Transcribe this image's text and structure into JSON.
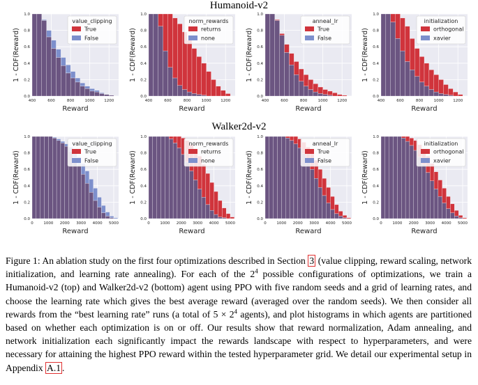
{
  "figure": {
    "row_titles": [
      "Humanoid-v2",
      "Walker2d-v2"
    ],
    "colors": {
      "on": "#d0343c",
      "off": "#7d8fcc",
      "overlap": "#6b5581",
      "grid": "#ffffff",
      "legend_bg": "#ffffff"
    }
  },
  "caption": {
    "label": "Figure 1:",
    "text_1": "An ablation study on the first four optimizations described in Section",
    "ref_section": "3",
    "text_2": "(value clipping, reward scaling, network initialization, and learning rate annealing). For each of the",
    "exp_base": "2",
    "exp_power": "4",
    "text_3": "possible configurations of optimizations, we train a Humanoid-v2 (top) and Walker2d-v2 (bottom) agent using PPO with five random seeds and a grid of learning rates, and choose the learning rate which gives the best average reward (averaged over the random seeds). We then consider all rewards from the “best learning rate” runs (a total of",
    "count_expr": "5 × 2",
    "count_power": "4",
    "text_4": "agents), and plot histograms in which agents are partitioned based on whether each optimization is on or off. Our results show that reward normalization, Adam annealing, and network initialization each significantly impact the rewards landscape with respect to hyperparameters, and were necessary for attaining the highest PPO reward within the tested hyperparameter grid. We detail our experimental setup in Appendix",
    "ref_appendix": "A.1",
    "text_end": "."
  },
  "chart_data": [
    {
      "type": "bar",
      "env": "Humanoid-v2",
      "title": "",
      "xlabel": "Reward",
      "ylabel": "1 - CDF(Reward)",
      "xlim": [
        400,
        1300
      ],
      "ylim": [
        0,
        1.0
      ],
      "xticks": [
        "400",
        "600",
        "800",
        "1000",
        "1200"
      ],
      "yticks": [
        "0.0",
        "0.2",
        "0.4",
        "0.6",
        "0.8",
        "1.0"
      ],
      "legend_title": "value_clipping",
      "legend_position": "top-right",
      "x": [
        400,
        450,
        500,
        550,
        600,
        650,
        700,
        750,
        800,
        850,
        900,
        950,
        1000,
        1050,
        1100,
        1150,
        1200
      ],
      "series": [
        {
          "name": "True",
          "values": [
            1.0,
            1.0,
            0.92,
            0.72,
            0.58,
            0.47,
            0.37,
            0.28,
            0.22,
            0.17,
            0.12,
            0.09,
            0.06,
            0.05,
            0.03,
            0.02,
            0.01
          ]
        },
        {
          "name": "False",
          "values": [
            1.0,
            1.0,
            0.93,
            0.8,
            0.68,
            0.57,
            0.47,
            0.38,
            0.3,
            0.22,
            0.16,
            0.12,
            0.09,
            0.07,
            0.04,
            0.02,
            0.01
          ]
        }
      ]
    },
    {
      "type": "bar",
      "env": "Humanoid-v2",
      "title": "",
      "xlabel": "Reward",
      "ylabel": "1 - CDF(Reward)",
      "xlim": [
        400,
        1300
      ],
      "ylim": [
        0,
        1.0
      ],
      "xticks": [
        "400",
        "600",
        "800",
        "1000",
        "1200"
      ],
      "yticks": [
        "0.0",
        "0.2",
        "0.4",
        "0.6",
        "0.8",
        "1.0"
      ],
      "legend_title": "norm_rewards",
      "legend_position": "top-right",
      "x": [
        400,
        450,
        500,
        550,
        600,
        650,
        700,
        750,
        800,
        850,
        900,
        950,
        1000,
        1050,
        1100,
        1150,
        1200
      ],
      "series": [
        {
          "name": "returns",
          "values": [
            1.0,
            1.0,
            1.0,
            1.0,
            1.0,
            0.95,
            0.88,
            0.78,
            0.68,
            0.58,
            0.48,
            0.4,
            0.3,
            0.2,
            0.12,
            0.07,
            0.03
          ]
        },
        {
          "name": "none",
          "values": [
            1.0,
            1.0,
            0.85,
            0.55,
            0.35,
            0.22,
            0.13,
            0.08,
            0.05,
            0.03,
            0.02,
            0.01,
            0.0,
            0.0,
            0.0,
            0.0,
            0.0
          ]
        }
      ]
    },
    {
      "type": "bar",
      "env": "Humanoid-v2",
      "title": "",
      "xlabel": "Reward",
      "ylabel": "1 - CDF(Reward)",
      "xlim": [
        400,
        1300
      ],
      "ylim": [
        0,
        1.0
      ],
      "xticks": [
        "400",
        "600",
        "800",
        "1000",
        "1200"
      ],
      "yticks": [
        "0.0",
        "0.2",
        "0.4",
        "0.6",
        "0.8",
        "1.0"
      ],
      "legend_title": "anneal_lr",
      "legend_position": "top-right",
      "x": [
        400,
        450,
        500,
        550,
        600,
        650,
        700,
        750,
        800,
        850,
        900,
        950,
        1000,
        1050,
        1100,
        1150,
        1200
      ],
      "series": [
        {
          "name": "True",
          "values": [
            1.0,
            1.0,
            0.93,
            0.76,
            0.63,
            0.52,
            0.42,
            0.33,
            0.26,
            0.2,
            0.15,
            0.11,
            0.08,
            0.06,
            0.04,
            0.02,
            0.01
          ]
        },
        {
          "name": "False",
          "values": [
            1.0,
            1.0,
            0.92,
            0.74,
            0.53,
            0.38,
            0.26,
            0.18,
            0.12,
            0.08,
            0.05,
            0.03,
            0.02,
            0.01,
            0.0,
            0.0,
            0.0
          ]
        }
      ]
    },
    {
      "type": "bar",
      "env": "Humanoid-v2",
      "title": "",
      "xlabel": "Reward",
      "ylabel": "1 - CDF(Reward)",
      "xlim": [
        400,
        1300
      ],
      "ylim": [
        0,
        1.0
      ],
      "xticks": [
        "400",
        "600",
        "800",
        "1000",
        "1200"
      ],
      "yticks": [
        "0.0",
        "0.2",
        "0.4",
        "0.6",
        "0.8",
        "1.0"
      ],
      "legend_title": "initialization",
      "legend_position": "top-right",
      "x": [
        400,
        450,
        500,
        550,
        600,
        650,
        700,
        750,
        800,
        850,
        900,
        950,
        1000,
        1050,
        1100,
        1150,
        1200
      ],
      "series": [
        {
          "name": "orthogonal",
          "values": [
            1.0,
            1.0,
            1.0,
            1.0,
            0.95,
            0.85,
            0.7,
            0.58,
            0.48,
            0.4,
            0.32,
            0.26,
            0.2,
            0.14,
            0.09,
            0.05,
            0.02
          ]
        },
        {
          "name": "xavier",
          "values": [
            1.0,
            1.0,
            0.9,
            0.7,
            0.55,
            0.42,
            0.32,
            0.24,
            0.17,
            0.12,
            0.08,
            0.05,
            0.03,
            0.02,
            0.01,
            0.0,
            0.0
          ]
        }
      ]
    },
    {
      "type": "bar",
      "env": "Walker2d-v2",
      "title": "",
      "xlabel": "Reward",
      "ylabel": "1 - CDF(Reward)",
      "xlim": [
        0,
        5300
      ],
      "ylim": [
        0,
        1.0
      ],
      "xticks": [
        "0",
        "1000",
        "2000",
        "3000",
        "4000",
        "5000"
      ],
      "yticks": [
        "0.0",
        "0.2",
        "0.4",
        "0.6",
        "0.8",
        "1.0"
      ],
      "legend_title": "value_clipping",
      "legend_position": "top-right",
      "x": [
        0,
        250,
        500,
        750,
        1000,
        1250,
        1500,
        1750,
        2000,
        2250,
        2500,
        2750,
        3000,
        3250,
        3500,
        3750,
        4000,
        4250,
        4500,
        4750,
        5000
      ],
      "series": [
        {
          "name": "True",
          "values": [
            1.0,
            1.0,
            1.0,
            1.0,
            1.0,
            0.98,
            0.95,
            0.92,
            0.88,
            0.82,
            0.74,
            0.65,
            0.54,
            0.43,
            0.32,
            0.22,
            0.14,
            0.07,
            0.03,
            0.01,
            0.0
          ]
        },
        {
          "name": "False",
          "values": [
            1.0,
            1.0,
            1.0,
            1.0,
            1.0,
            0.99,
            0.97,
            0.94,
            0.91,
            0.87,
            0.82,
            0.75,
            0.67,
            0.58,
            0.48,
            0.37,
            0.26,
            0.16,
            0.08,
            0.03,
            0.01
          ]
        }
      ]
    },
    {
      "type": "bar",
      "env": "Walker2d-v2",
      "title": "",
      "xlabel": "Reward",
      "ylabel": "1 - CDF(Reward)",
      "xlim": [
        0,
        5300
      ],
      "ylim": [
        0,
        1.0
      ],
      "xticks": [
        "0",
        "1000",
        "2000",
        "3000",
        "4000",
        "5000"
      ],
      "yticks": [
        "0.0",
        "0.2",
        "0.4",
        "0.6",
        "0.8",
        "1.0"
      ],
      "legend_title": "norm_rewards",
      "legend_position": "top-right",
      "x": [
        0,
        250,
        500,
        750,
        1000,
        1250,
        1500,
        1750,
        2000,
        2250,
        2500,
        2750,
        3000,
        3250,
        3500,
        3750,
        4000,
        4250,
        4500,
        4750,
        5000
      ],
      "series": [
        {
          "name": "returns",
          "values": [
            1.0,
            1.0,
            1.0,
            1.0,
            1.0,
            1.0,
            1.0,
            1.0,
            0.98,
            0.95,
            0.9,
            0.84,
            0.76,
            0.66,
            0.55,
            0.44,
            0.33,
            0.22,
            0.13,
            0.06,
            0.02
          ]
        },
        {
          "name": "none",
          "values": [
            1.0,
            1.0,
            1.0,
            1.0,
            1.0,
            0.97,
            0.92,
            0.86,
            0.78,
            0.69,
            0.58,
            0.47,
            0.36,
            0.26,
            0.17,
            0.1,
            0.05,
            0.02,
            0.01,
            0.0,
            0.0
          ]
        }
      ]
    },
    {
      "type": "bar",
      "env": "Walker2d-v2",
      "title": "",
      "xlabel": "Reward",
      "ylabel": "1 - CDF(Reward)",
      "xlim": [
        0,
        5300
      ],
      "ylim": [
        0,
        1.0
      ],
      "xticks": [
        "0",
        "1000",
        "2000",
        "3000",
        "4000",
        "5000"
      ],
      "yticks": [
        "0.0",
        "0.2",
        "0.4",
        "0.6",
        "0.8",
        "1.0"
      ],
      "legend_title": "anneal_lr",
      "legend_position": "top-right",
      "x": [
        0,
        250,
        500,
        750,
        1000,
        1250,
        1500,
        1750,
        2000,
        2250,
        2500,
        2750,
        3000,
        3250,
        3500,
        3750,
        4000,
        4250,
        4500,
        4750,
        5000
      ],
      "series": [
        {
          "name": "True",
          "values": [
            1.0,
            1.0,
            1.0,
            1.0,
            1.0,
            1.0,
            1.0,
            1.0,
            0.97,
            0.93,
            0.87,
            0.8,
            0.71,
            0.6,
            0.49,
            0.38,
            0.27,
            0.17,
            0.09,
            0.04,
            0.01
          ]
        },
        {
          "name": "False",
          "values": [
            1.0,
            1.0,
            1.0,
            1.0,
            1.0,
            0.98,
            0.95,
            0.91,
            0.86,
            0.79,
            0.7,
            0.6,
            0.49,
            0.38,
            0.28,
            0.19,
            0.11,
            0.06,
            0.03,
            0.01,
            0.0
          ]
        }
      ]
    },
    {
      "type": "bar",
      "env": "Walker2d-v2",
      "title": "",
      "xlabel": "Reward",
      "ylabel": "1 - CDF(Reward)",
      "xlim": [
        0,
        5300
      ],
      "ylim": [
        0,
        1.0
      ],
      "xticks": [
        "0",
        "1000",
        "2000",
        "3000",
        "4000",
        "5000"
      ],
      "yticks": [
        "0.0",
        "0.2",
        "0.4",
        "0.6",
        "0.8",
        "1.0"
      ],
      "legend_title": "initialization",
      "legend_position": "top-right",
      "x": [
        0,
        250,
        500,
        750,
        1000,
        1250,
        1500,
        1750,
        2000,
        2250,
        2500,
        2750,
        3000,
        3250,
        3500,
        3750,
        4000,
        4250,
        4500,
        4750,
        5000
      ],
      "series": [
        {
          "name": "orthogonal",
          "values": [
            1.0,
            1.0,
            1.0,
            1.0,
            1.0,
            1.0,
            1.0,
            0.98,
            0.95,
            0.9,
            0.84,
            0.76,
            0.67,
            0.57,
            0.47,
            0.37,
            0.27,
            0.18,
            0.1,
            0.04,
            0.01
          ]
        },
        {
          "name": "xavier",
          "values": [
            1.0,
            1.0,
            1.0,
            1.0,
            1.0,
            0.98,
            0.94,
            0.89,
            0.83,
            0.75,
            0.66,
            0.56,
            0.46,
            0.36,
            0.27,
            0.19,
            0.12,
            0.07,
            0.03,
            0.01,
            0.0
          ]
        }
      ]
    }
  ]
}
